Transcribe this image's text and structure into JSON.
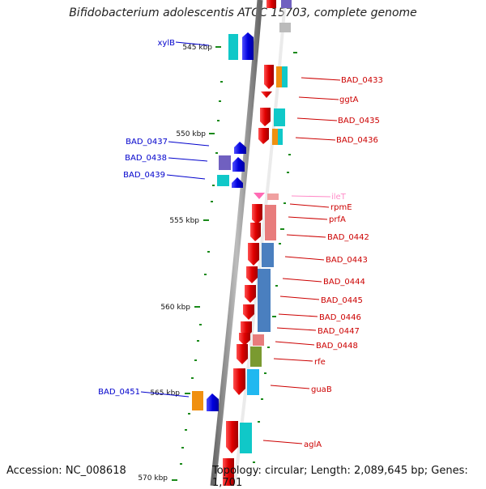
{
  "title": "Bifidobacterium adolescentis ATCC 15703, complete genome",
  "footer": {
    "accession": "Accession: NC_008618",
    "summary": "Topology: circular; Length: 2,089,645 bp; Genes: 1,701"
  },
  "colors": {
    "forward_gene": "#e00000",
    "reverse_gene": "#0000dd",
    "rna_gene": "#ff8cc8",
    "cog_cyan": "#10c8c8",
    "cog_orange": "#f09010",
    "cog_steelblue": "#4a7fbf",
    "cog_salmon": "#e87c7c",
    "cog_olive": "#7a9a30",
    "cog_skyblue": "#20b8f0",
    "cog_slateblue": "#7060c0",
    "backbone": "#888888",
    "gc_skew_dots": "#1a8a1a"
  },
  "scale": {
    "unit": "kbp",
    "major_ticks": [
      545,
      550,
      555,
      560,
      565,
      570
    ]
  },
  "genes_forward": [
    {
      "label": "BAD_0433",
      "pos": 547.5
    },
    {
      "label": "ggtA",
      "pos": 548.4
    },
    {
      "label": "BAD_0435",
      "pos": 549.4
    },
    {
      "label": "BAD_0436",
      "pos": 550.3
    },
    {
      "label": "ileT",
      "pos": 553.6,
      "type": "rna"
    },
    {
      "label": "rpmE",
      "pos": 554.2
    },
    {
      "label": "prfA",
      "pos": 554.8
    },
    {
      "label": "BAD_0442",
      "pos": 555.8
    },
    {
      "label": "BAD_0443",
      "pos": 557.0
    },
    {
      "label": "BAD_0444",
      "pos": 558.1
    },
    {
      "label": "BAD_0445",
      "pos": 559.0
    },
    {
      "label": "BAD_0446",
      "pos": 559.8
    },
    {
      "label": "BAD_0447",
      "pos": 560.5
    },
    {
      "label": "BAD_0448",
      "pos": 561.2
    },
    {
      "label": "rfe",
      "pos": 562.0
    },
    {
      "label": "guaB",
      "pos": 563.3
    },
    {
      "label": "aglA",
      "pos": 568.0
    }
  ],
  "genes_reverse": [
    {
      "label": "xylB",
      "pos": 545.2
    },
    {
      "label": "BAD_0437",
      "pos": 550.6
    },
    {
      "label": "BAD_0438",
      "pos": 551.4
    },
    {
      "label": "BAD_0439",
      "pos": 552.2
    },
    {
      "label": "BAD_0451",
      "pos": 565.1
    }
  ]
}
